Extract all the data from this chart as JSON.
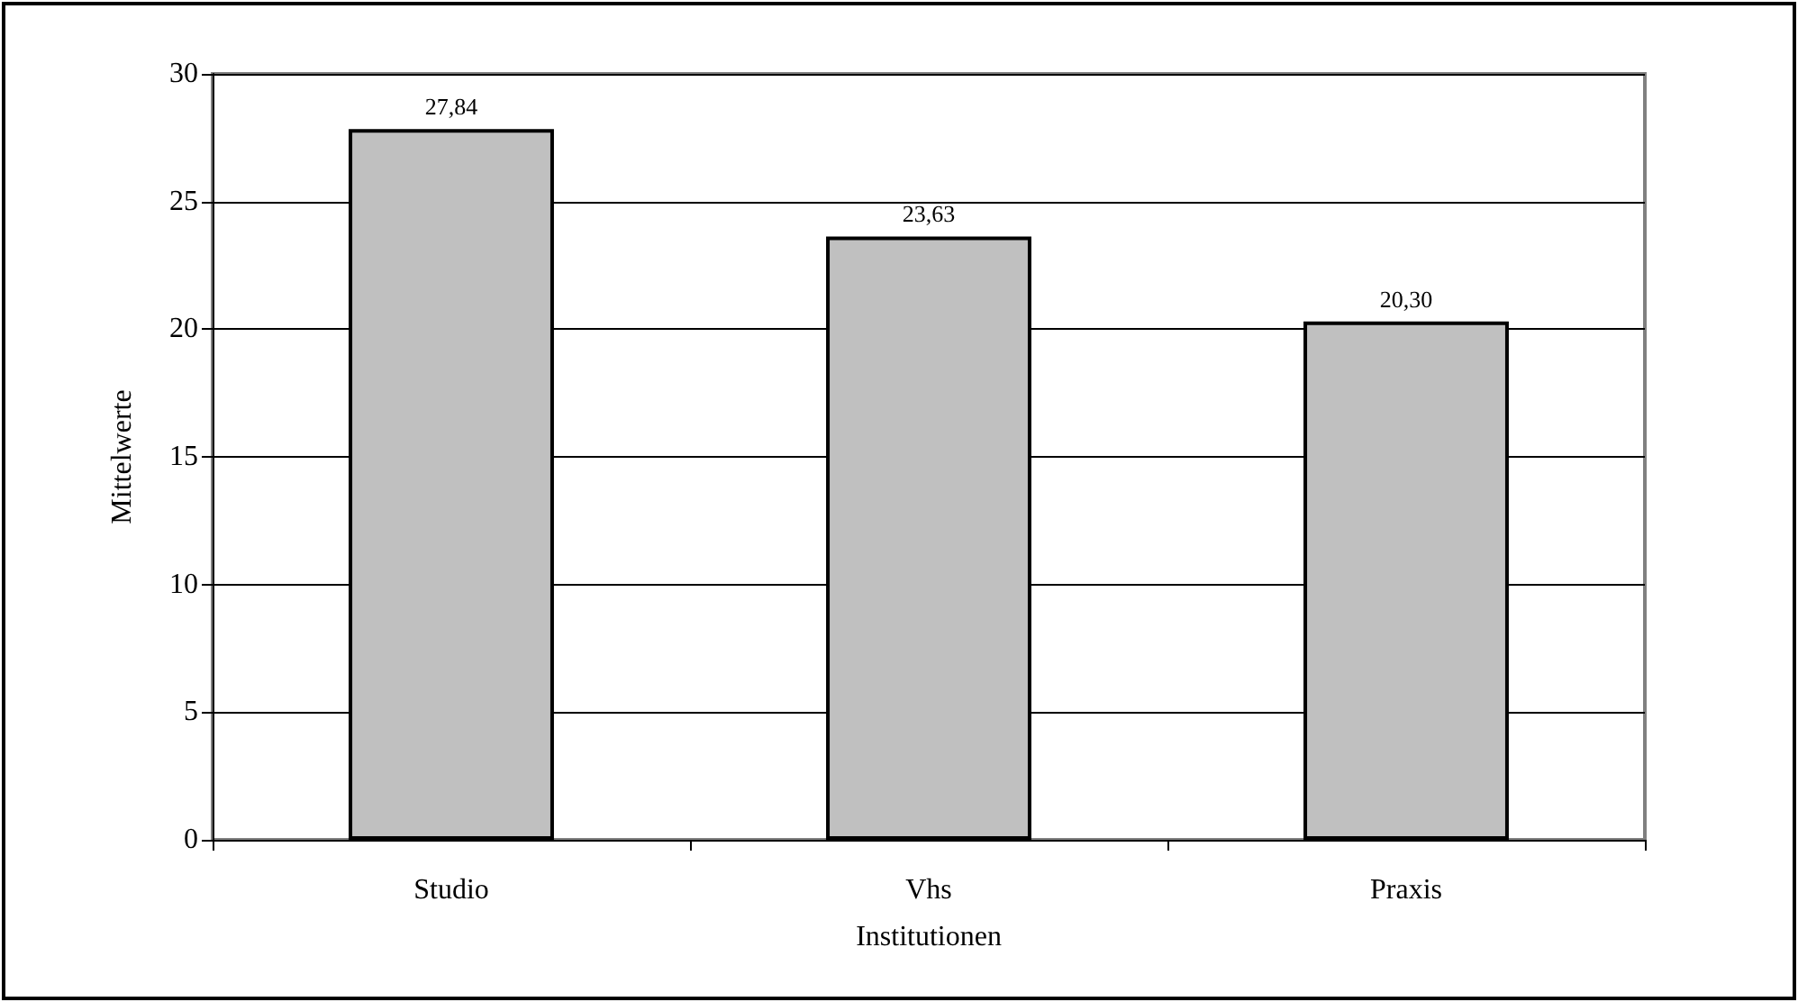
{
  "chart_data": {
    "type": "bar",
    "xlabel": "Institutionen",
    "ylabel": "Mittelwerte",
    "categories": [
      "Studio",
      "Vhs",
      "Praxis"
    ],
    "values": [
      27.84,
      23.63,
      20.3
    ],
    "value_labels": [
      "27,84",
      "23,63",
      "20,30"
    ],
    "color": "#c0c0c0",
    "ylim": [
      0,
      30
    ],
    "yticks": [
      0,
      5,
      10,
      15,
      20,
      25,
      30
    ],
    "grid": "y"
  }
}
